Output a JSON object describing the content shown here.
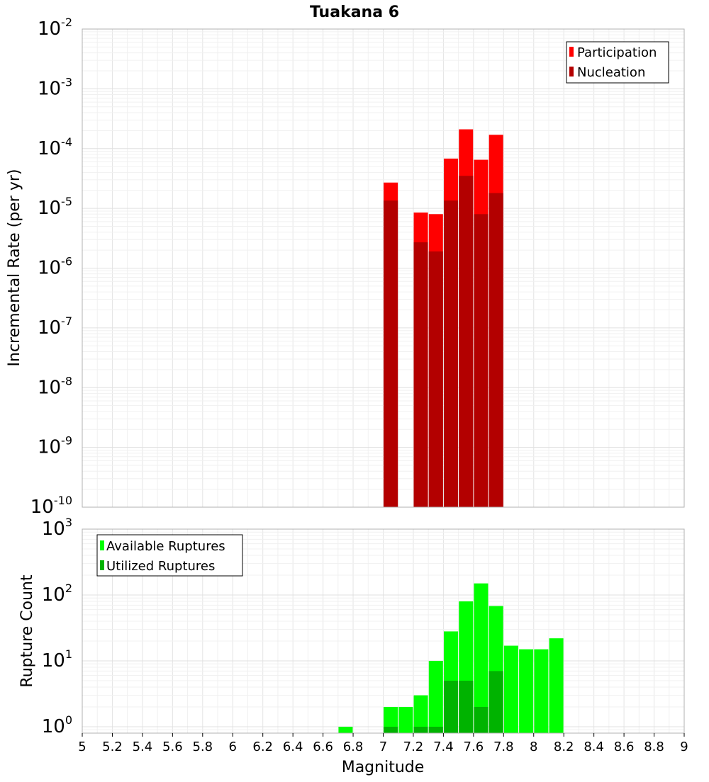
{
  "title": "Tuakana 6",
  "xlabel": "Magnitude",
  "x_tick_labels": [
    "5",
    "5.2",
    "5.4",
    "5.6",
    "5.8",
    "6",
    "6.2",
    "6.4",
    "6.6",
    "6.8",
    "7",
    "7.2",
    "7.4",
    "7.6",
    "7.8",
    "8",
    "8.2",
    "8.4",
    "8.6",
    "8.8",
    "9"
  ],
  "colors": {
    "participation": "#ff0000",
    "nucleation": "#b30000",
    "available": "#00ff00",
    "utilized": "#00b300"
  },
  "chart_data": [
    {
      "type": "bar",
      "title": "Tuakana 6",
      "ylabel": "Incremental Rate (per yr)",
      "xlabel": "",
      "y_scale": "log",
      "ylim": [
        1e-10,
        0.01
      ],
      "xlim": [
        5,
        9
      ],
      "grid": true,
      "legend_position": "top-right",
      "y_tick_labels": [
        {
          "base": "10",
          "exp": "-10",
          "value": 1e-10
        },
        {
          "base": "10",
          "exp": "-9",
          "value": 1e-09
        },
        {
          "base": "10",
          "exp": "-8",
          "value": 1e-08
        },
        {
          "base": "10",
          "exp": "-7",
          "value": 1e-07
        },
        {
          "base": "10",
          "exp": "-6",
          "value": 1e-06
        },
        {
          "base": "10",
          "exp": "-5",
          "value": 1e-05
        },
        {
          "base": "10",
          "exp": "-4",
          "value": 0.0001
        },
        {
          "base": "10",
          "exp": "-3",
          "value": 0.001
        },
        {
          "base": "10",
          "exp": "-2",
          "value": 0.01
        }
      ],
      "x": [
        7.05,
        7.25,
        7.35,
        7.45,
        7.55,
        7.65,
        7.75
      ],
      "series": [
        {
          "name": "Participation",
          "values": [
            2.7e-05,
            8.5e-06,
            8e-06,
            6.8e-05,
            0.00021,
            6.5e-05,
            0.00017
          ]
        },
        {
          "name": "Nucleation",
          "values": [
            1.35e-05,
            2.7e-06,
            1.9e-06,
            1.35e-05,
            3.5e-05,
            8e-06,
            1.8e-05
          ]
        }
      ]
    },
    {
      "type": "bar",
      "title": "",
      "ylabel": "Rupture Count",
      "xlabel": "Magnitude",
      "y_scale": "log",
      "ylim": [
        0.8,
        1000
      ],
      "xlim": [
        5,
        9
      ],
      "grid": true,
      "legend_position": "top-left",
      "y_tick_labels": [
        {
          "base": "10",
          "exp": "0",
          "value": 1
        },
        {
          "base": "10",
          "exp": "1",
          "value": 10
        },
        {
          "base": "10",
          "exp": "2",
          "value": 100
        },
        {
          "base": "10",
          "exp": "3",
          "value": 1000
        }
      ],
      "x": [
        6.75,
        7.05,
        7.15,
        7.25,
        7.35,
        7.45,
        7.55,
        7.65,
        7.75,
        7.85,
        7.95,
        8.05,
        8.15
      ],
      "series": [
        {
          "name": "Available Ruptures",
          "values": [
            1,
            2,
            2,
            3,
            10,
            28,
            80,
            150,
            68,
            17,
            15,
            15,
            22
          ]
        },
        {
          "name": "Utilized Ruptures",
          "values": [
            0,
            1,
            0,
            1,
            1,
            5,
            5,
            2,
            7,
            0,
            0,
            0,
            0
          ]
        }
      ]
    }
  ]
}
